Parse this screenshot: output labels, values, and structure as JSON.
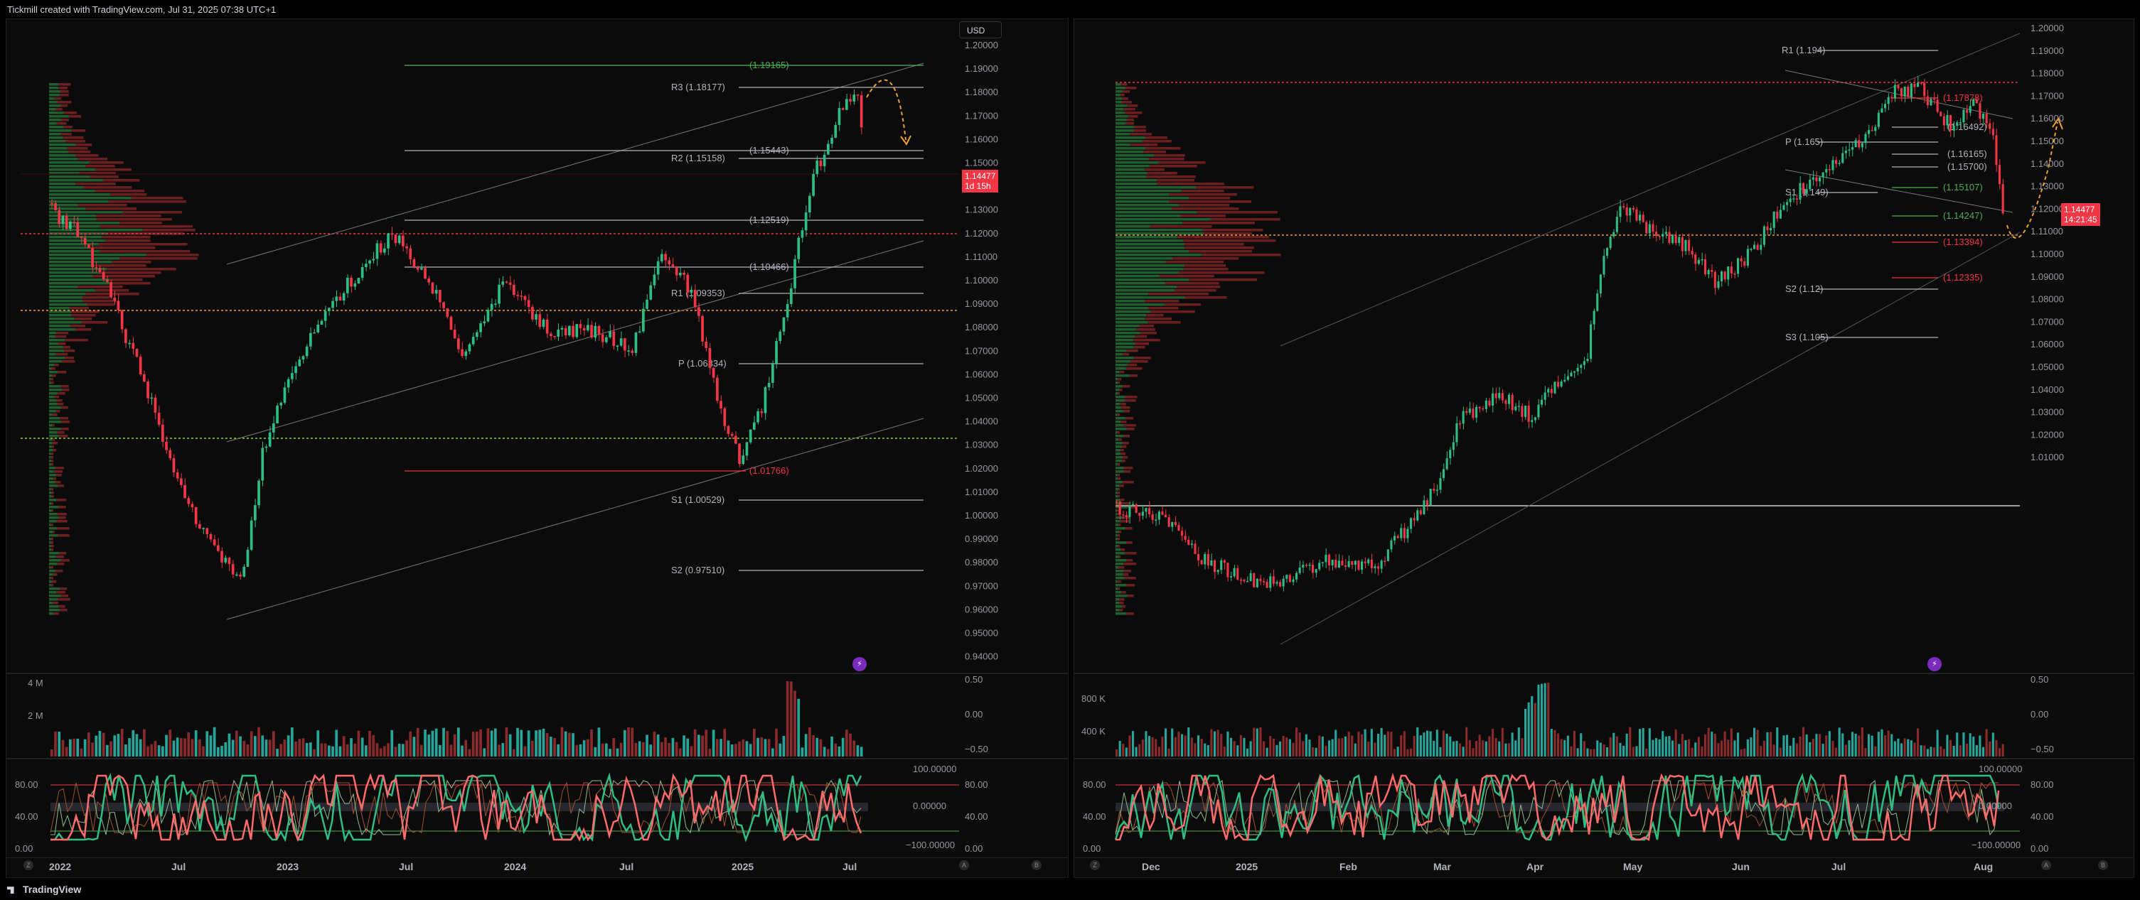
{
  "header": {
    "caption": "Tickmill created with TradingView.com, Jul 31, 2025 07:38 UTC+1"
  },
  "footer": {
    "brand": "TradingView"
  },
  "colors": {
    "up": "#26a69a",
    "up_bright": "#2ebd85",
    "down": "#f23645",
    "down_dark": "#8b2a2a",
    "volume_profile_up": "#1f5e2f",
    "volume_profile_down": "#6b1f1f",
    "level_line": "#b2b5be",
    "pivot_r": "#4caf50",
    "pivot_s": "#f23645",
    "forecast_arrow": "#f0a030",
    "poc": "#f0a030"
  },
  "left_chart": {
    "currency_button": "USD",
    "price_axis_ticks": [
      "1.20000",
      "1.19000",
      "1.18000",
      "1.17000",
      "1.16000",
      "1.15000",
      "1.14000",
      "1.13000",
      "1.12000",
      "1.11000",
      "1.10000",
      "1.09000",
      "1.08000",
      "1.07000",
      "1.06000",
      "1.05000",
      "1.04000",
      "1.03000",
      "1.02000",
      "1.01000",
      "1.00000",
      "0.99000",
      "0.98000",
      "0.97000",
      "0.96000",
      "0.95000",
      "0.94000"
    ],
    "price_tag": {
      "price": "1.14477",
      "countdown": "1d 15h"
    },
    "levels": [
      {
        "label": "(1.19165)",
        "color": "green"
      },
      {
        "label": "R3 (1.18177)",
        "color": "grey"
      },
      {
        "label": "(1.15443)",
        "color": "grey"
      },
      {
        "label": "R2 (1.15158)",
        "color": "grey"
      },
      {
        "label": "(1.12519)",
        "color": "grey"
      },
      {
        "label": "(1.10466)",
        "color": "grey"
      },
      {
        "label": "R1 (1.09353)",
        "color": "grey"
      },
      {
        "label": "P (1.06334)",
        "color": "grey"
      },
      {
        "label": "(1.01766)",
        "color": "red"
      },
      {
        "label": "S1 (1.00529)",
        "color": "grey"
      },
      {
        "label": "S2 (0.97510)",
        "color": "grey"
      }
    ],
    "volume_axis": [
      "4 M",
      "2 M"
    ],
    "volume_right_axis": [
      "0.50",
      "0.00",
      "−0.50"
    ],
    "oscillator_left_axis": [
      "80.00",
      "40.00",
      "0.00"
    ],
    "oscillator_right_axis": [
      "100.00000",
      "80.00",
      "0.00000",
      "40.00",
      "0.00",
      "−100.00000"
    ],
    "time_axis": [
      "2022",
      "Jul",
      "2023",
      "Jul",
      "2024",
      "Jul",
      "2025",
      "Jul"
    ],
    "corner_buttons": [
      "Z",
      "A",
      "B"
    ]
  },
  "right_chart": {
    "price_axis_ticks": [
      "1.20000",
      "1.19000",
      "1.18000",
      "1.17000",
      "1.16000",
      "1.15000",
      "1.14000",
      "1.13000",
      "1.12000",
      "1.11000",
      "1.10000",
      "1.09000",
      "1.08000",
      "1.07000",
      "1.06000",
      "1.05000",
      "1.04000",
      "1.03000",
      "1.02000",
      "1.01000"
    ],
    "price_tag": {
      "price": "1.14477",
      "countdown": "14:21:45"
    },
    "levels": [
      {
        "label": "R1 (1.194)",
        "color": "grey"
      },
      {
        "label": "(1.17878)",
        "color": "red"
      },
      {
        "label": "(1.16492)",
        "color": "grey"
      },
      {
        "label": "P (1.165)",
        "color": "grey"
      },
      {
        "label": "(1.16165)",
        "color": "grey"
      },
      {
        "label": "(1.15700)",
        "color": "grey"
      },
      {
        "label": "(1.15107)",
        "color": "green"
      },
      {
        "label": "S1 (1.149)",
        "color": "grey"
      },
      {
        "label": "(1.14247)",
        "color": "green"
      },
      {
        "label": "(1.13394)",
        "color": "red"
      },
      {
        "label": "S2 (1.12)",
        "color": "grey"
      },
      {
        "label": "(1.12335)",
        "color": "red"
      },
      {
        "label": "S3 (1.105)",
        "color": "grey"
      }
    ],
    "volume_axis": [
      "800 K",
      "400 K"
    ],
    "volume_right_axis": [
      "0.50",
      "0.00",
      "−0.50"
    ],
    "oscillator_left_axis": [
      "80.00",
      "40.00",
      "0.00"
    ],
    "oscillator_right_axis": [
      "100.00000",
      "80.00",
      "0.00000",
      "40.00",
      "0.00",
      "−100.00000"
    ],
    "time_axis": [
      "Dec",
      "2025",
      "Feb",
      "Mar",
      "Apr",
      "May",
      "Jun",
      "Jul",
      "Aug"
    ],
    "corner_buttons": [
      "Z",
      "A",
      "B"
    ]
  }
}
